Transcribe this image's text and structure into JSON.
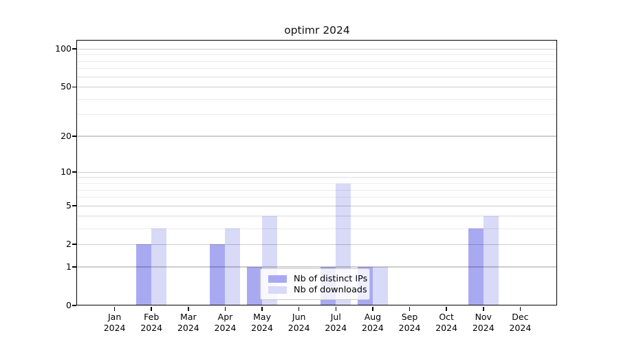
{
  "figure": {
    "background_color": "#ffffff",
    "spine_color": "#000000"
  },
  "chart_data": {
    "type": "bar",
    "title": "optimr 2024",
    "months": [
      "Jan",
      "Feb",
      "Mar",
      "Apr",
      "May",
      "Jun",
      "Jul",
      "Aug",
      "Sep",
      "Oct",
      "Nov",
      "Dec"
    ],
    "year_label": "2024",
    "series": [
      {
        "key": "ips",
        "name": "Nb of distinct IPs",
        "color": "#a9a9f2",
        "values": [
          0,
          2,
          0,
          2,
          1,
          0,
          1,
          1,
          0,
          0,
          3,
          0
        ]
      },
      {
        "key": "downloads",
        "name": "Nb of downloads",
        "color": "#d9d9f8",
        "values": [
          0,
          3,
          0,
          3,
          4,
          0,
          8,
          1,
          0,
          0,
          4,
          0
        ]
      }
    ],
    "yscale": "log1p",
    "ylim": [
      0,
      115
    ],
    "y_major_ticks": [
      0,
      1,
      2,
      5,
      10,
      20,
      50,
      100
    ],
    "y_minor_ticks": [
      3,
      4,
      6,
      7,
      8,
      9,
      30,
      40,
      60,
      70,
      80,
      90
    ],
    "grid": "both",
    "grid_major_color": "rgba(0,0,0,0.20)",
    "grid_minor_color": "rgba(0,0,0,0.075)",
    "legend_position": "lower center",
    "xlabel": "",
    "ylabel": ""
  }
}
